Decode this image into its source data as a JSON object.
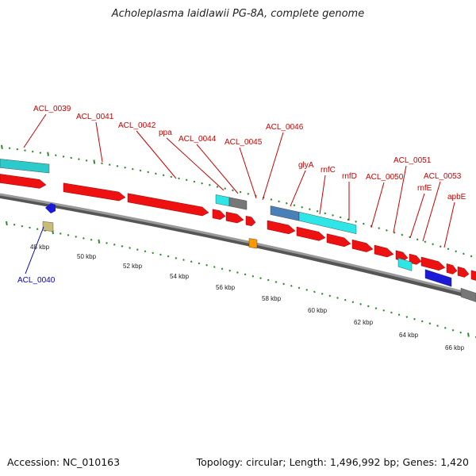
{
  "title": "Acholeplasma laidlawii PG-8A, complete genome",
  "footer": {
    "accession": "Accession: NC_010163",
    "summary": "Topology: circular; Length: 1,496,992 bp; Genes: 1,420"
  },
  "colors": {
    "background": "#ffffff",
    "backbone": "#777777",
    "tick": "#2e8b2e",
    "gene_forward_label": "#cc0000",
    "gene_reverse_label": "#0000cc",
    "cds": "#ee1111",
    "feature_cyan": "#2ee6e6",
    "feature_teal": "#2ccaca",
    "feature_gray": "#777777",
    "feature_orange": "#ff9900",
    "feature_steelblue": "#4a80b8",
    "feature_blue": "#1a1ad8",
    "feature_khaki": "#c8bc78"
  },
  "scale": {
    "unit": "kbp",
    "labels": [
      "48 kbp",
      "50 kbp",
      "52 kbp",
      "54 kbp",
      "56 kbp",
      "58 kbp",
      "60 kbp",
      "62 kbp",
      "64 kbp",
      "66 kbp"
    ]
  },
  "gene_labels": {
    "forward": [
      "ACL_0039",
      "ACL_0041",
      "ACL_0042",
      "ppa",
      "ACL_0044",
      "ACL_0045",
      "ACL_0046",
      "glyA",
      "rnfC",
      "rnfD",
      "ACL_0050",
      "ACL_0051",
      "rnfE",
      "ACL_0053",
      "apbE"
    ],
    "reverse": [
      "ACL_0040"
    ]
  }
}
